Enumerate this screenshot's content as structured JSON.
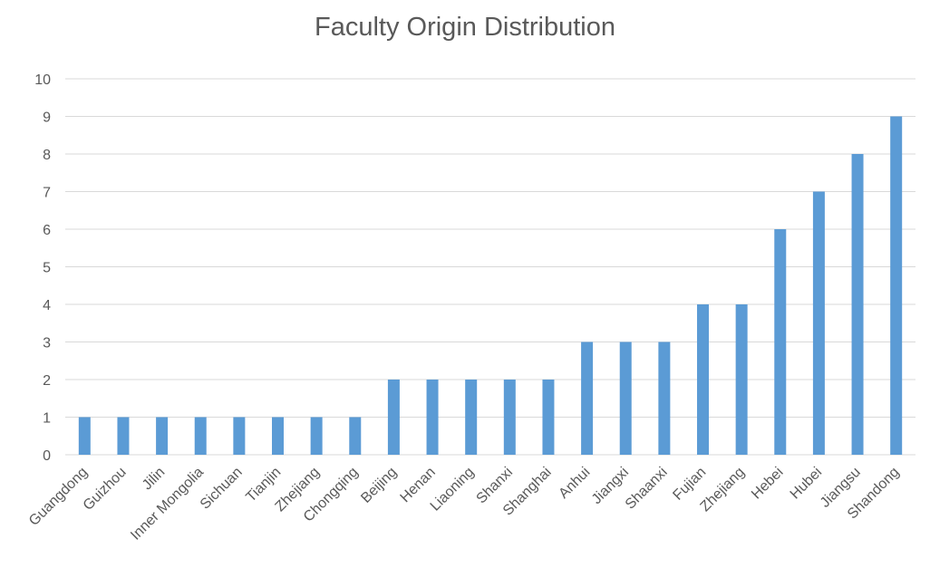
{
  "chart_data": {
    "type": "bar",
    "title": "Faculty Origin Distribution",
    "xlabel": "",
    "ylabel": "",
    "categories": [
      "Guangdong",
      "Guizhou",
      "Jilin",
      "Inner Mongolia",
      "Sichuan",
      "Tianjin",
      "Zhejiang",
      "Chongqing",
      "Beijing",
      "Henan",
      "Liaoning",
      "Shanxi",
      "Shanghai",
      "Anhui",
      "Jiangxi",
      "Shaanxi",
      "Fujian",
      "Zhejiang",
      "Hebei",
      "Hubei",
      "Jiangsu",
      "Shandong"
    ],
    "values": [
      1,
      1,
      1,
      1,
      1,
      1,
      1,
      1,
      2,
      2,
      2,
      2,
      2,
      3,
      3,
      3,
      4,
      4,
      6,
      7,
      8,
      9
    ],
    "ylim": [
      0,
      10
    ],
    "yticks": [
      0,
      1,
      2,
      3,
      4,
      5,
      6,
      7,
      8,
      9,
      10
    ],
    "grid": true,
    "legend": "none",
    "bar_color": "#5b9bd5",
    "grid_color": "#d9d9d9",
    "text_color": "#595959"
  }
}
